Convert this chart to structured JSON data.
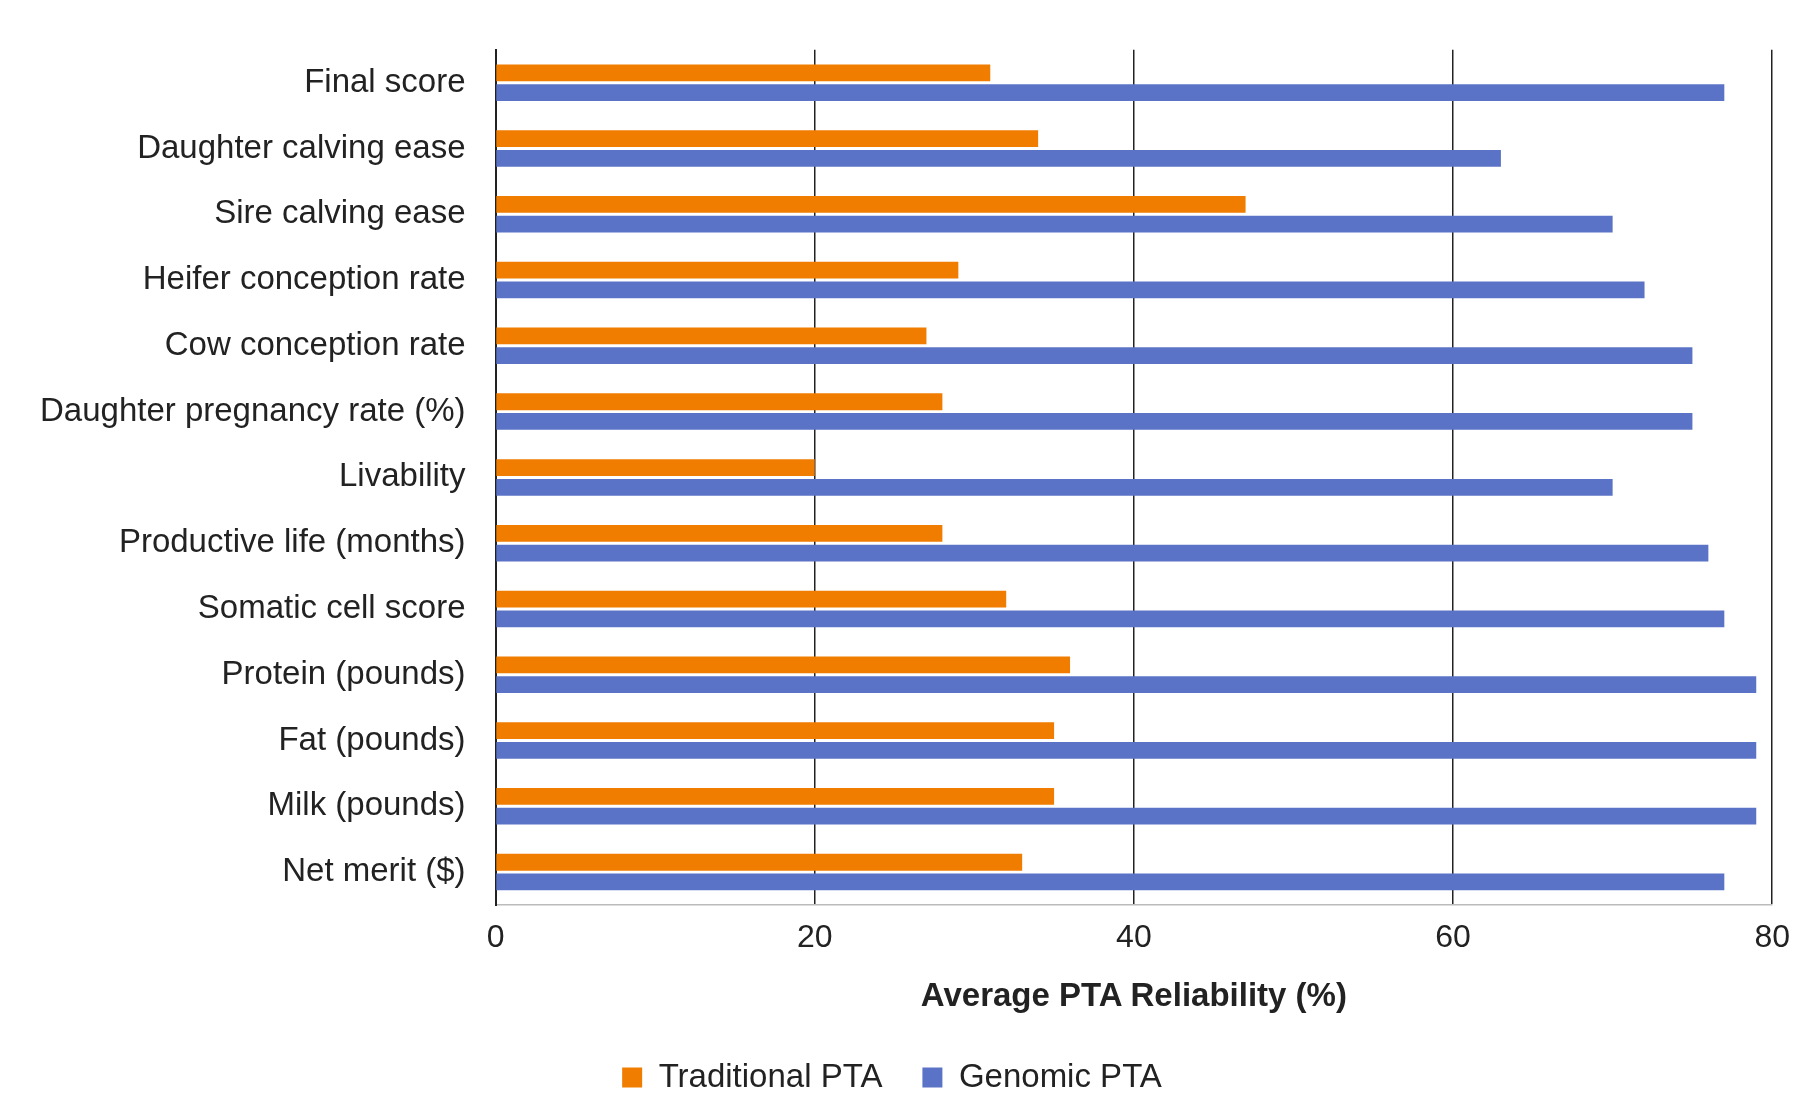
{
  "chart_data": {
    "type": "bar",
    "orientation": "horizontal",
    "xlabel": "Average PTA Reliability (%)",
    "categories": [
      "Final score",
      "Daughter calving ease",
      "Sire calving ease",
      "Heifer conception rate",
      "Cow conception rate",
      "Daughter pregnancy rate (%)",
      "Livability",
      "Productive life (months)",
      "Somatic cell score",
      "Protein (pounds)",
      "Fat (pounds)",
      "Milk (pounds)",
      "Net merit ($)"
    ],
    "series": [
      {
        "name": "Traditional PTA",
        "color": "#f07c00",
        "values": [
          31,
          34,
          47,
          29,
          27,
          28,
          20,
          28,
          32,
          36,
          35,
          35,
          33
        ]
      },
      {
        "name": "Genomic PTA",
        "color": "#5b73c6",
        "values": [
          77,
          63,
          70,
          72,
          75,
          75,
          70,
          76,
          77,
          79,
          79,
          79,
          77
        ]
      }
    ],
    "xlim": [
      0,
      80
    ],
    "xticks": [
      0,
      20,
      40,
      60,
      80
    ],
    "grid": "x",
    "legend": "bottom"
  }
}
